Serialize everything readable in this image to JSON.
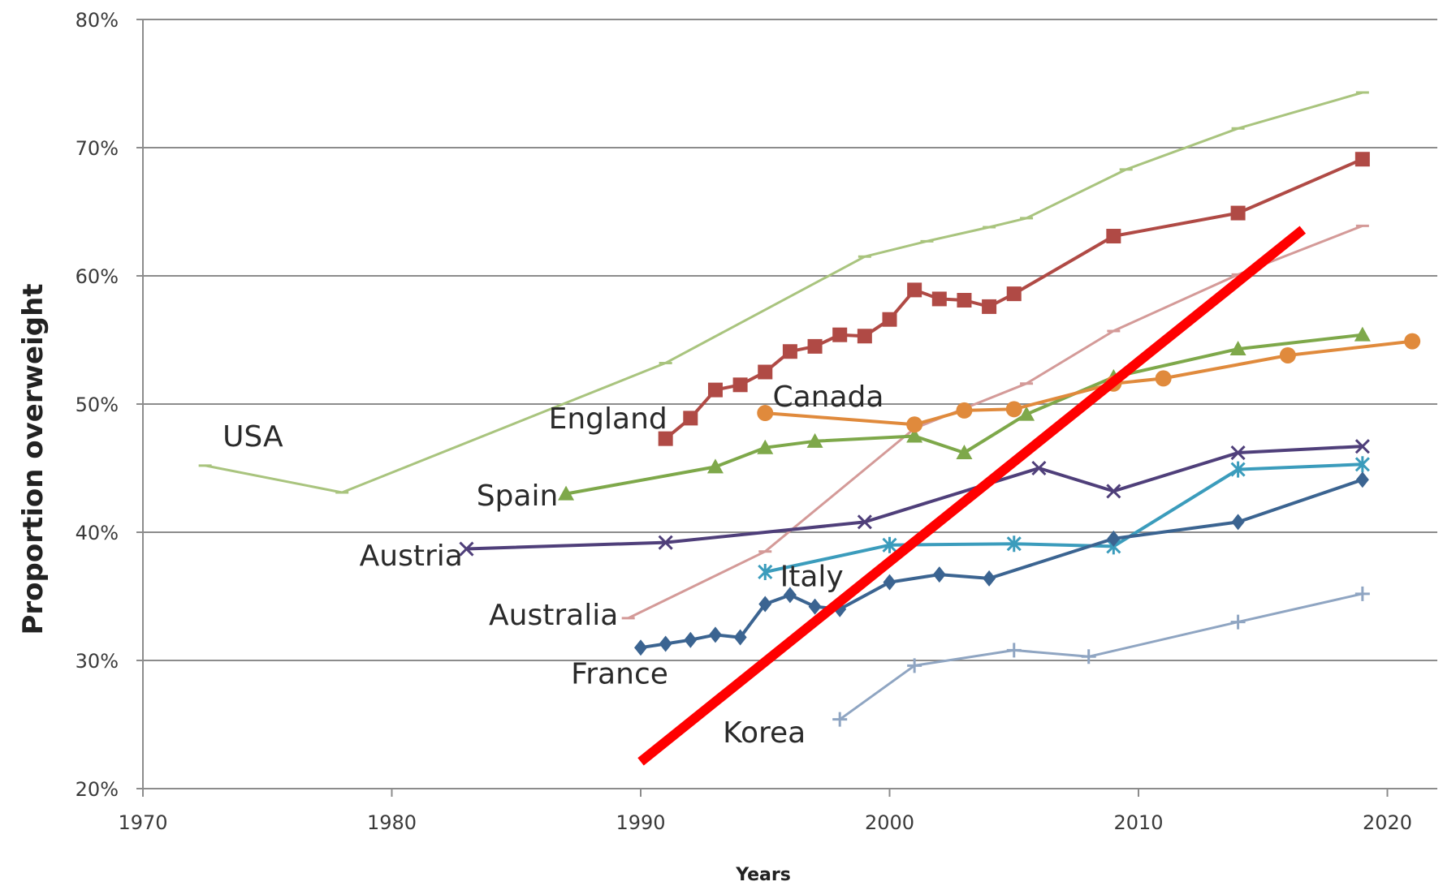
{
  "chart_data": {
    "type": "line",
    "title": "",
    "xlabel": "Years",
    "ylabel": "Proportion overweight",
    "xlim": [
      1970,
      2022
    ],
    "ylim": [
      20,
      80
    ],
    "grid": true,
    "legend": "inline labels",
    "x_ticks": [
      1970,
      1980,
      1990,
      2000,
      2010,
      2020
    ],
    "x_tick_labels": [
      "1970",
      "1980",
      "1990",
      "2000",
      "2010",
      "2020"
    ],
    "y_ticks": [
      20,
      30,
      40,
      50,
      60,
      70,
      80
    ],
    "y_tick_labels": [
      "20%",
      "30%",
      "40%",
      "50%",
      "60%",
      "70%",
      "80%"
    ],
    "series": [
      {
        "name": "USA",
        "color": "#a9c47e",
        "marker": "dash",
        "x": [
          1972.5,
          1978,
          1991,
          1999,
          2001.5,
          2004,
          2005.5,
          2009.5,
          2014,
          2019
        ],
        "y": [
          45.2,
          43.1,
          53.2,
          61.5,
          62.7,
          63.8,
          64.5,
          68.3,
          71.5,
          74.3
        ]
      },
      {
        "name": "Australia",
        "color": "#d49a98",
        "marker": "dash",
        "x": [
          1989.5,
          1995,
          2001,
          2005.5,
          2009,
          2014,
          2019
        ],
        "y": [
          33.3,
          38.5,
          48.1,
          51.6,
          55.7,
          60.1,
          63.9
        ]
      },
      {
        "name": "England",
        "color": "#b04a45",
        "marker": "square",
        "x": [
          1991,
          1992,
          1993,
          1994,
          1995,
          1996,
          1997,
          1998,
          1999,
          2000,
          2001,
          2002,
          2003,
          2004,
          2005,
          2009,
          2014,
          2019
        ],
        "y": [
          47.3,
          48.9,
          51.1,
          51.5,
          52.5,
          54.1,
          54.5,
          55.4,
          55.3,
          56.6,
          58.9,
          58.2,
          58.1,
          57.6,
          58.6,
          63.1,
          64.9,
          69.1
        ]
      },
      {
        "name": "Spain",
        "color": "#7ea84a",
        "marker": "triangle",
        "x": [
          1987,
          1993,
          1995,
          1997,
          2001,
          2003,
          2005.5,
          2009,
          2014,
          2019
        ],
        "y": [
          43.0,
          45.1,
          46.6,
          47.1,
          47.5,
          46.2,
          49.2,
          52.1,
          54.3,
          55.4
        ]
      },
      {
        "name": "Canada",
        "color": "#e08a3c",
        "marker": "circle",
        "x": [
          1995,
          2001,
          2003,
          2005,
          2009,
          2011,
          2016,
          2021
        ],
        "y": [
          49.3,
          48.4,
          49.5,
          49.6,
          51.6,
          52.0,
          53.8,
          54.9
        ]
      },
      {
        "name": "Austria",
        "color": "#4f3f7a",
        "marker": "x",
        "x": [
          1983,
          1991,
          1999,
          2006,
          2009,
          2014,
          2019
        ],
        "y": [
          38.7,
          39.2,
          40.8,
          45.0,
          43.2,
          46.2,
          46.7
        ]
      },
      {
        "name": "Italy",
        "color": "#3b9cbc",
        "marker": "asterisk",
        "x": [
          1995,
          2000,
          2005,
          2009,
          2014,
          2019
        ],
        "y": [
          36.9,
          39.0,
          39.1,
          38.9,
          44.9,
          45.3
        ]
      },
      {
        "name": "France",
        "color": "#3b6491",
        "marker": "diamond",
        "x": [
          1990,
          1991,
          1992,
          1993,
          1994,
          1995,
          1996,
          1997,
          1998,
          2000,
          2002,
          2004,
          2009,
          2014,
          2019
        ],
        "y": [
          31.0,
          31.3,
          31.6,
          32.0,
          31.8,
          34.4,
          35.1,
          34.2,
          34.0,
          36.1,
          36.7,
          36.4,
          39.5,
          40.8,
          44.1
        ]
      },
      {
        "name": "Korea",
        "color": "#8fa5c2",
        "marker": "plus",
        "x": [
          1998,
          2001,
          2005,
          2008,
          2014,
          2019
        ],
        "y": [
          25.4,
          29.6,
          30.8,
          30.3,
          33.0,
          35.2
        ]
      }
    ],
    "series_labels": [
      {
        "text": "USA",
        "x": 1973.2,
        "y": 46.7
      },
      {
        "text": "England",
        "x": 1986.3,
        "y": 48.1
      },
      {
        "text": "Canada",
        "x": 1995.3,
        "y": 49.8
      },
      {
        "text": "Spain",
        "x": 1983.4,
        "y": 42.1
      },
      {
        "text": "Austria",
        "x": 1978.7,
        "y": 37.4
      },
      {
        "text": "Italy",
        "x": 1995.6,
        "y": 35.8
      },
      {
        "text": "Australia",
        "x": 1983.9,
        "y": 32.8
      },
      {
        "text": "France",
        "x": 1987.2,
        "y": 28.2
      },
      {
        "text": "Korea",
        "x": 1993.3,
        "y": 23.6
      }
    ],
    "annotations": [
      {
        "type": "line",
        "color": "#ff0000",
        "x": [
          1990,
          2016.6
        ],
        "y": [
          22.1,
          63.6
        ]
      }
    ]
  }
}
